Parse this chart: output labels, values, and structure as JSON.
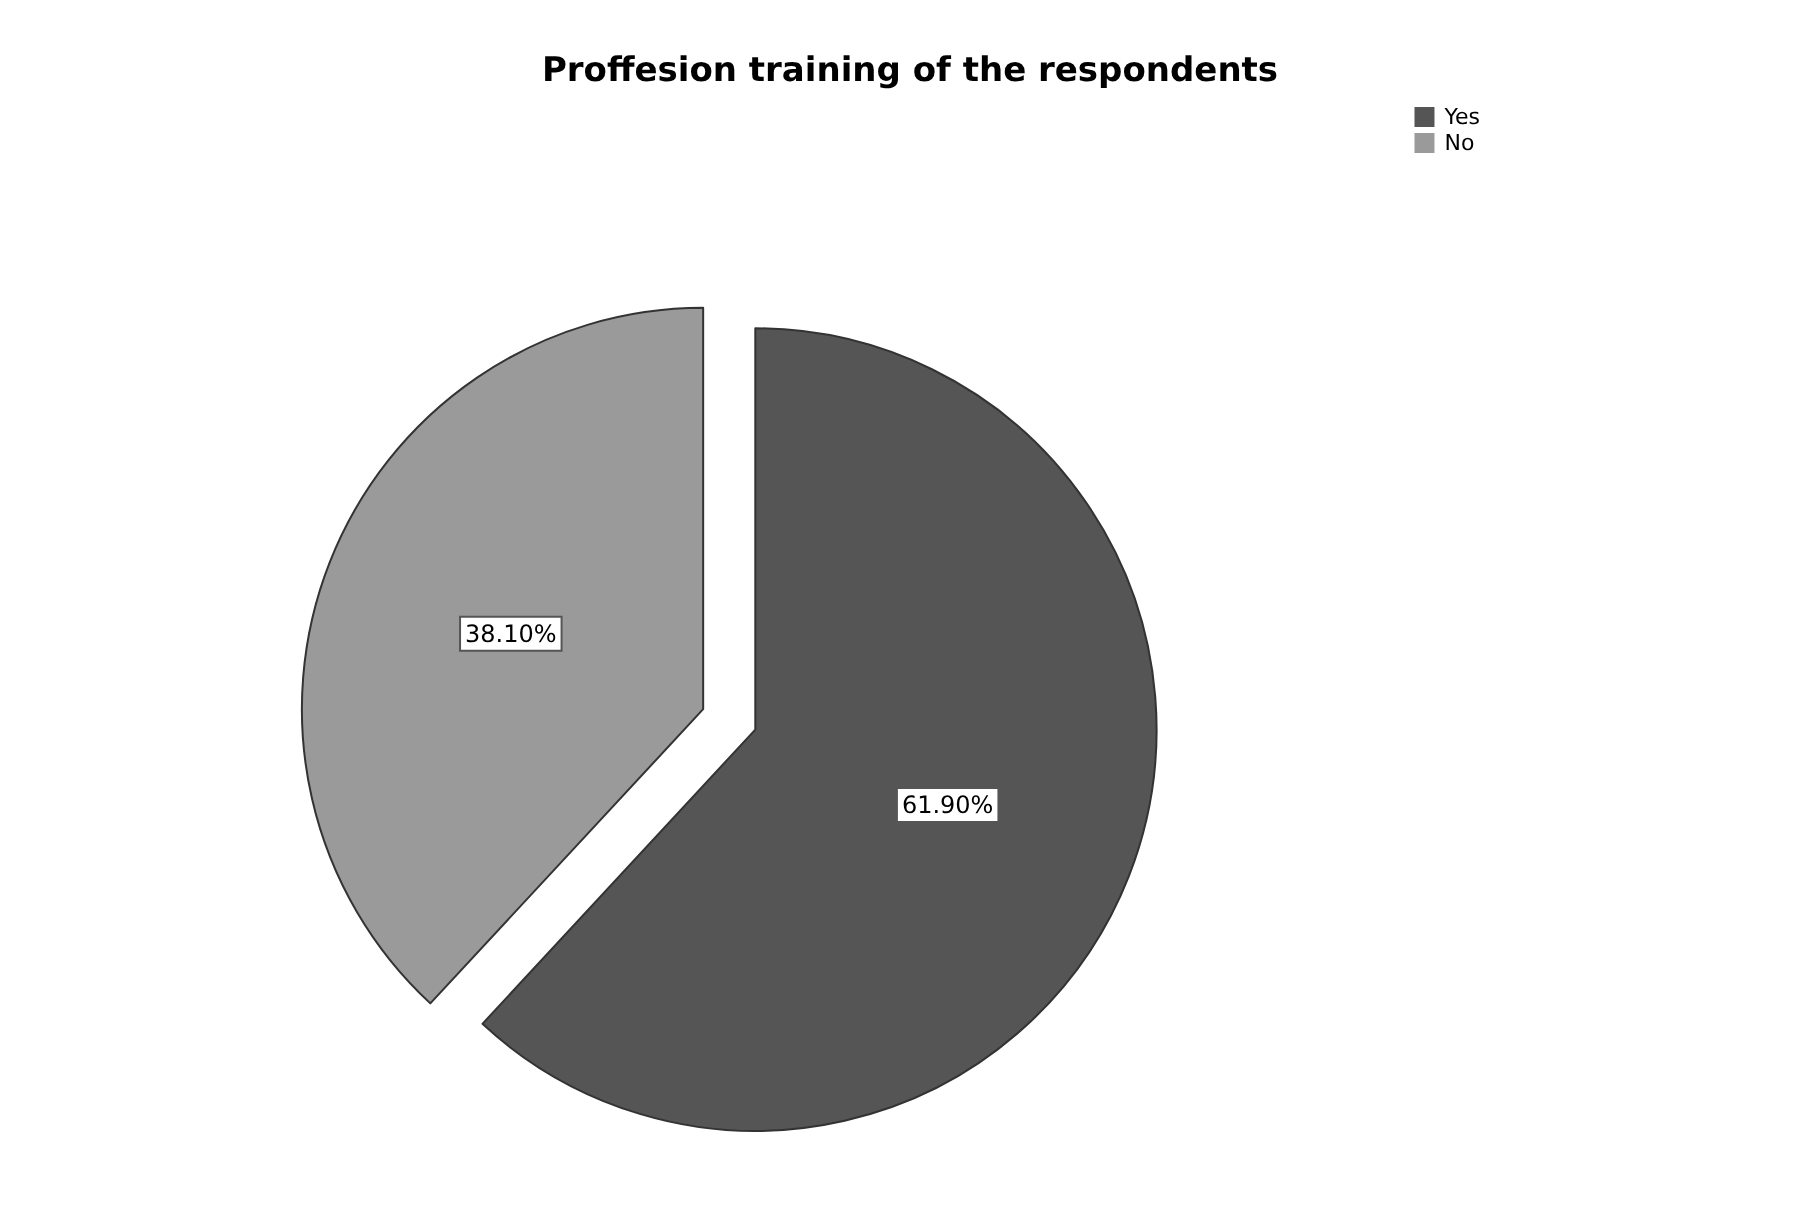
{
  "chart_data": {
    "type": "pie",
    "title": "Proffesion training of the respondents",
    "categories": [
      "Yes",
      "No"
    ],
    "values": [
      61.9,
      38.1
    ],
    "colors": [
      "#555555",
      "#9a9a9a"
    ],
    "value_labels": [
      "61.90%",
      "38.10%"
    ],
    "legend": "top right"
  }
}
